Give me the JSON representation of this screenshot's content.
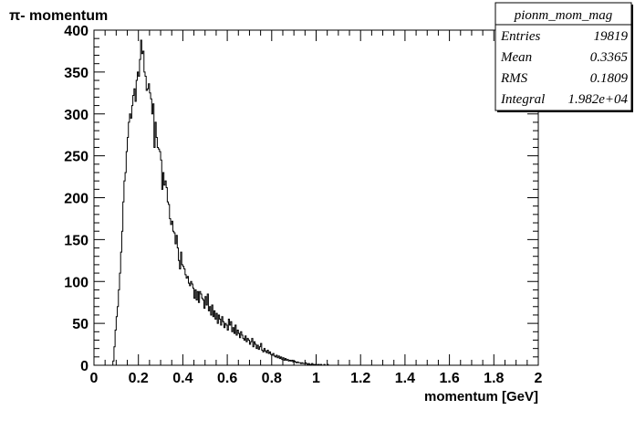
{
  "chart_data": {
    "type": "histogram-step",
    "title": "π- momentum",
    "xlabel": "momentum [GeV]",
    "ylabel": "",
    "xlim": [
      0,
      2
    ],
    "ylim": [
      0,
      400
    ],
    "x_ticks": [
      "0",
      "0.2",
      "0.4",
      "0.6",
      "0.8",
      "1",
      "1.2",
      "1.4",
      "1.6",
      "1.8",
      "2"
    ],
    "y_ticks": [
      "0",
      "50",
      "100",
      "150",
      "200",
      "250",
      "300",
      "350",
      "400"
    ],
    "bin_width": 0.005,
    "x_start": 0.085,
    "grid": false,
    "line_color": "#000000",
    "values": [
      5,
      22,
      42,
      58,
      70,
      90,
      110,
      135,
      160,
      195,
      220,
      230,
      255,
      272,
      290,
      300,
      295,
      310,
      322,
      330,
      315,
      340,
      350,
      345,
      365,
      388,
      372,
      375,
      350,
      345,
      328,
      330,
      336,
      325,
      318,
      300,
      312,
      260,
      290,
      272,
      260,
      258,
      255,
      245,
      210,
      230,
      215,
      220,
      212,
      195,
      192,
      175,
      168,
      172,
      160,
      158,
      145,
      155,
      140,
      125,
      115,
      135,
      120,
      118,
      115,
      108,
      104,
      106,
      98,
      95,
      100,
      97,
      92,
      80,
      90,
      78,
      88,
      75,
      88,
      85,
      80,
      78,
      68,
      82,
      72,
      85,
      65,
      70,
      60,
      72,
      58,
      65,
      55,
      62,
      50,
      60,
      55,
      48,
      58,
      52,
      45,
      50,
      48,
      42,
      55,
      48,
      52,
      40,
      45,
      38,
      48,
      36,
      42,
      38,
      33,
      40,
      36,
      32,
      30,
      35,
      28,
      32,
      30,
      25,
      28,
      32,
      22,
      28,
      25,
      20,
      24,
      19,
      22,
      26,
      18,
      16,
      20,
      17,
      15,
      18,
      14,
      16,
      13,
      12,
      14,
      11,
      10,
      12,
      9,
      11,
      8,
      10,
      7,
      9,
      6,
      8,
      6,
      7,
      5,
      6,
      5,
      6,
      4,
      5,
      4,
      3,
      4,
      3,
      3,
      2,
      3,
      2,
      2,
      3,
      2,
      1,
      2,
      1,
      1,
      2,
      1,
      1,
      1,
      0,
      1,
      1,
      0,
      1,
      0,
      0,
      1,
      0,
      0,
      1,
      0,
      0,
      0,
      0,
      0,
      0,
      0,
      0,
      0,
      0,
      0,
      0,
      0,
      0
    ],
    "stats_box": {
      "name": "pionm_mom_mag",
      "rows": [
        {
          "label": "Entries",
          "value": "19819"
        },
        {
          "label": "Mean",
          "value": "0.3365"
        },
        {
          "label": "RMS",
          "value": "0.1809"
        },
        {
          "label": "Integral",
          "value": "1.982e+04"
        }
      ]
    }
  }
}
